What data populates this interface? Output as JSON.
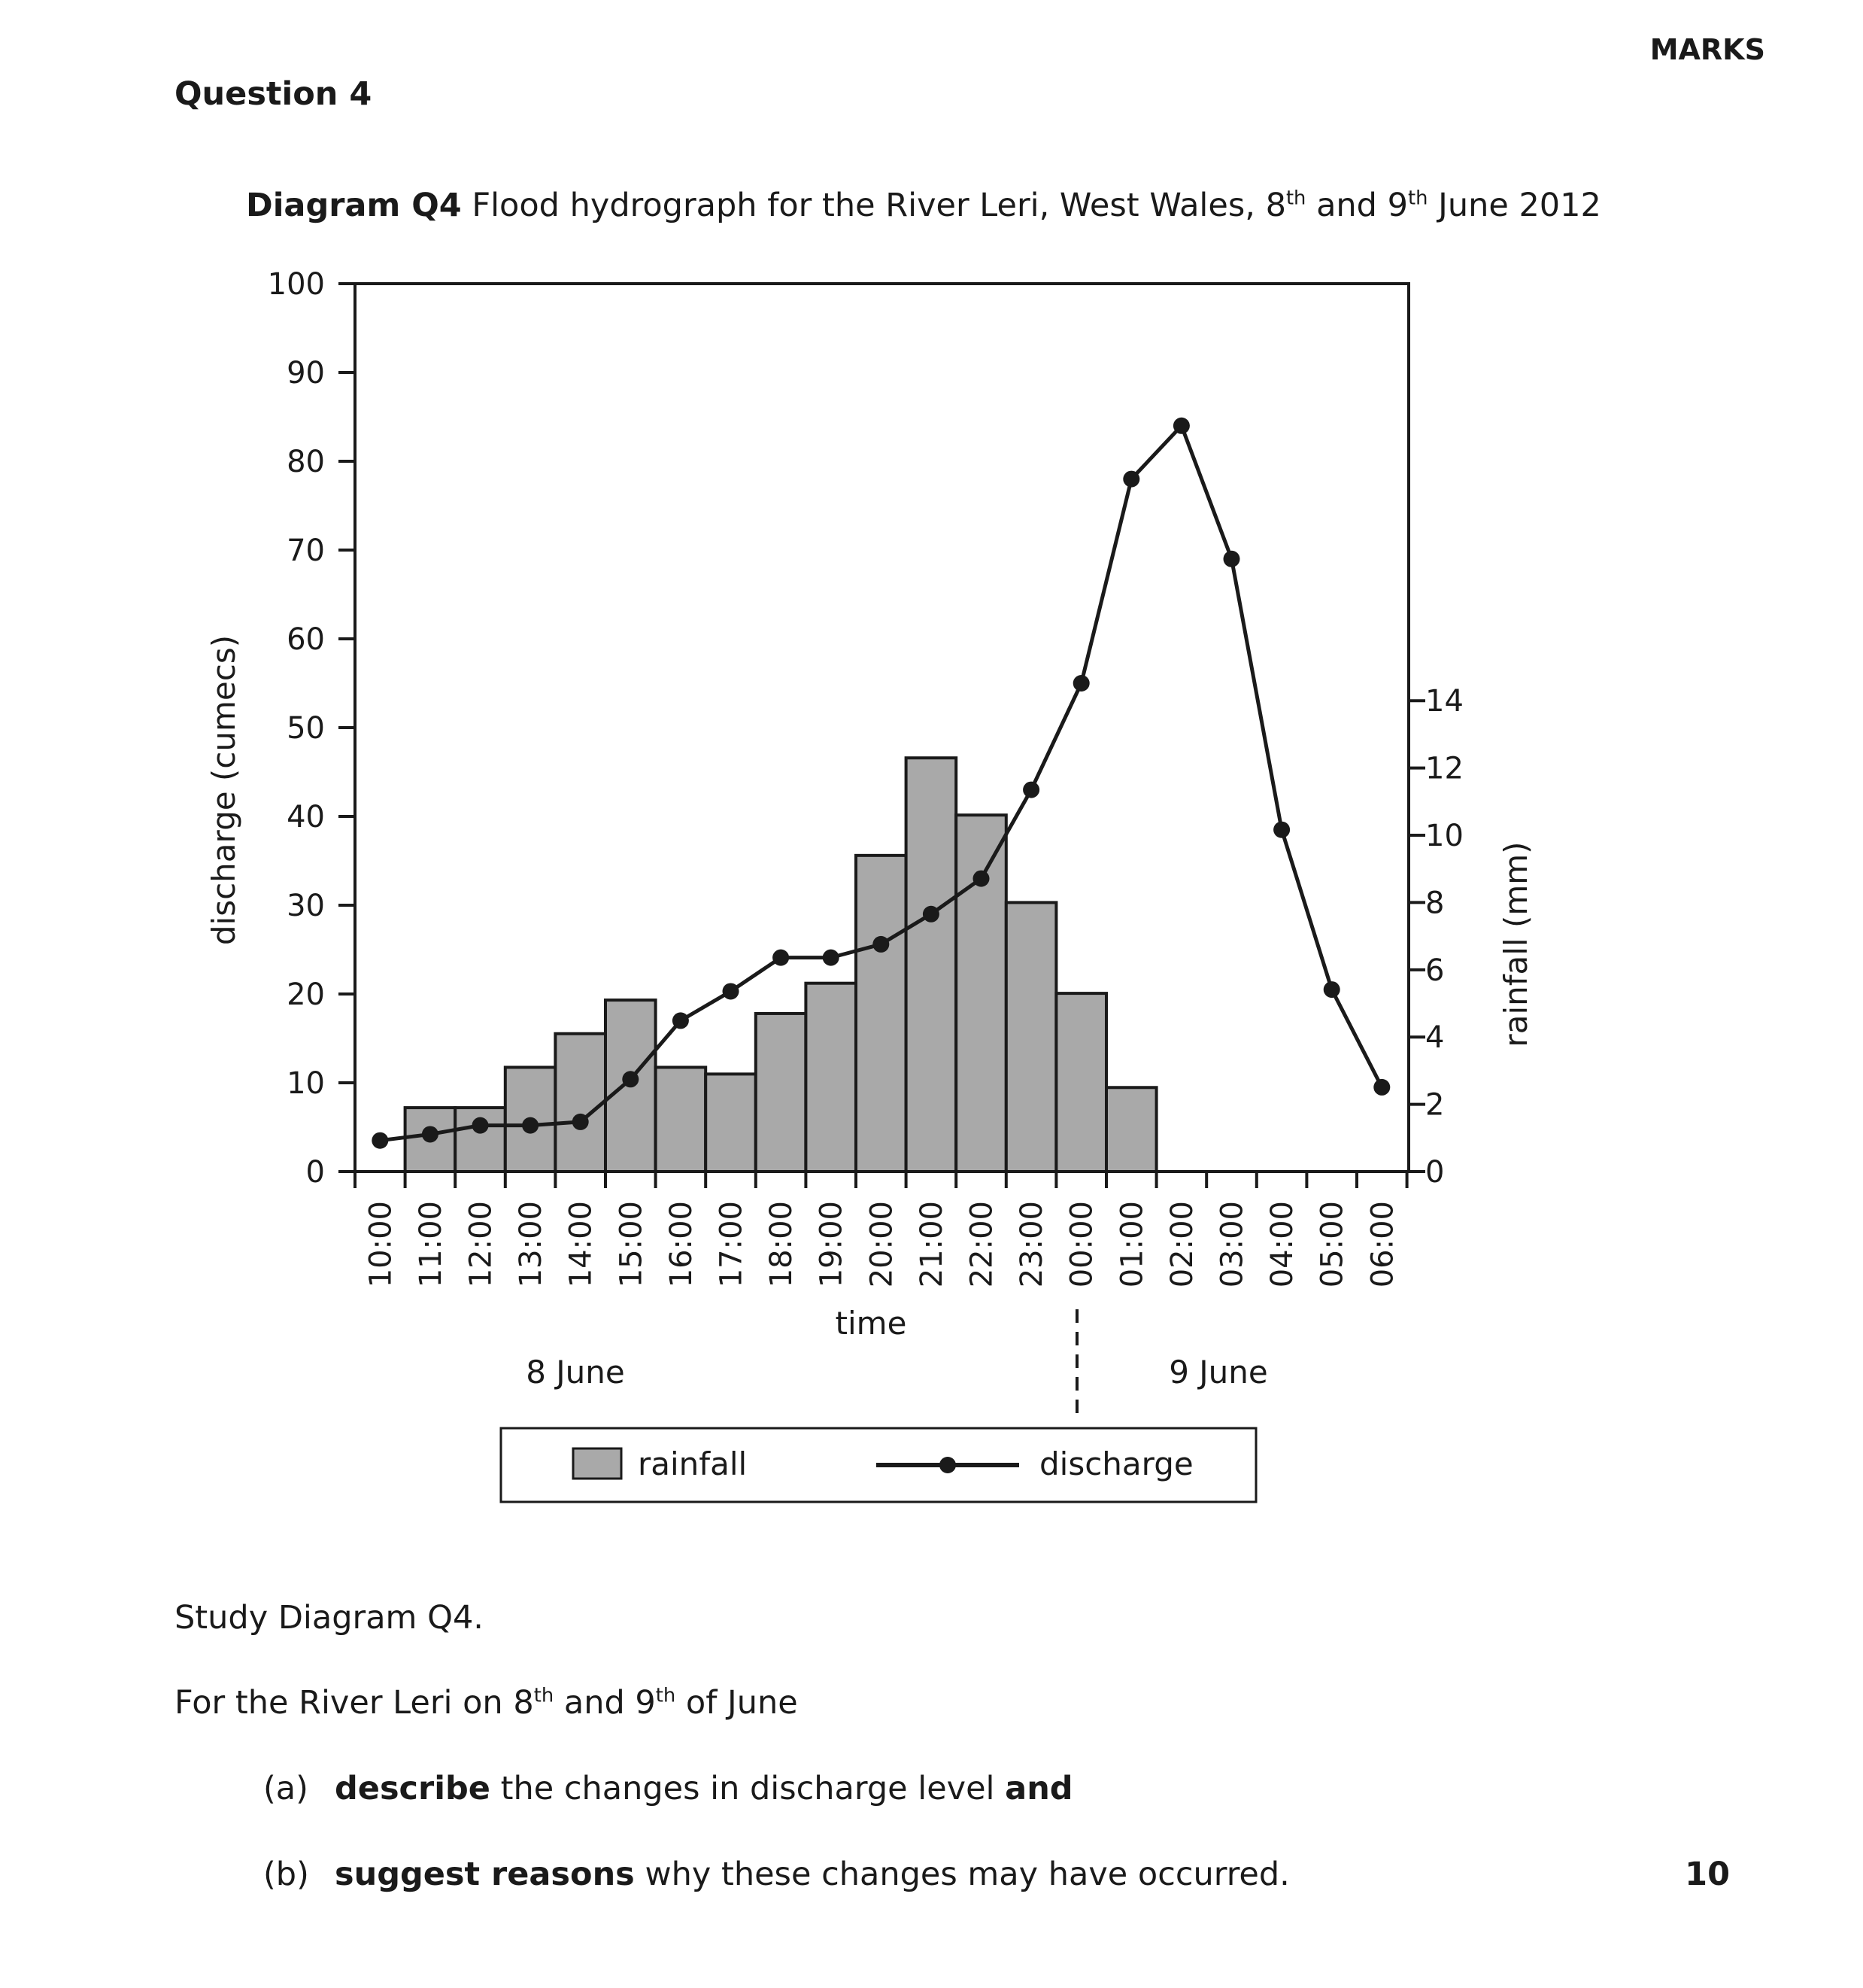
{
  "header": {
    "marks_label": "MARKS",
    "question_title": "Question 4"
  },
  "diagram_title": {
    "label": "Diagram Q4",
    "text_1": " Flood hydrograph for the River Leri, West Wales, 8",
    "sup_1": "th",
    "text_2": " and 9",
    "sup_2": "th",
    "text_3": " June 2012"
  },
  "chart_data": {
    "type": "bar+line",
    "categories": [
      "10:00",
      "11:00",
      "12:00",
      "13:00",
      "14:00",
      "15:00",
      "16:00",
      "17:00",
      "18:00",
      "19:00",
      "20:00",
      "21:00",
      "22:00",
      "23:00",
      "00:00",
      "01:00",
      "02:00",
      "03:00",
      "04:00",
      "05:00",
      "06:00"
    ],
    "rainfall": {
      "name": "rainfall",
      "unit_axis": "rainfall (mm)",
      "values": [
        1.9,
        1.9,
        3.1,
        4.1,
        5.1,
        3.1,
        2.9,
        4.7,
        5.6,
        9.4,
        12.3,
        10.6,
        8.0,
        5.3,
        2.5
      ]
    },
    "discharge": {
      "name": "discharge",
      "unit_axis": "discharge (cumecs)",
      "values": [
        3.5,
        4.2,
        5.2,
        5.2,
        5.6,
        10.4,
        17.0,
        20.3,
        24.1,
        24.1,
        25.6,
        29.0,
        33.0,
        43.0,
        55.0,
        78.0,
        84.0,
        69.0,
        38.5,
        20.5,
        9.5
      ]
    },
    "left_axis": {
      "label": "discharge (cumecs)",
      "min": 0,
      "max": 100,
      "ticks": [
        "0",
        "10",
        "20",
        "30",
        "40",
        "50",
        "60",
        "70",
        "80",
        "90",
        "100"
      ]
    },
    "right_axis": {
      "label": "rainfall (mm)",
      "min": 0,
      "max": 26.4,
      "ticks": [
        "0",
        "2",
        "4",
        "6",
        "8",
        "10",
        "12",
        "14"
      ]
    },
    "xlabel": "time",
    "day_labels": [
      "8 June",
      "9 June"
    ],
    "legend": {
      "rainfall": "rainfall",
      "discharge": "discharge"
    },
    "colors": {
      "bar_fill": "#a9a9a9",
      "stroke": "#1a1a1a"
    }
  },
  "body": {
    "intro": "Study Diagram Q4.",
    "line2_a": "For the River Leri on 8",
    "line2_sup1": "th",
    "line2_b": " and 9",
    "line2_sup2": "th",
    "line2_c": " of June",
    "a_label": "(a)",
    "a_bold": "describe",
    "a_text": " the changes in discharge level ",
    "a_bold2": "and",
    "b_label": "(b)",
    "b_bold": "suggest reasons",
    "b_text": " why these changes may have occurred.",
    "marks_value": "10"
  }
}
